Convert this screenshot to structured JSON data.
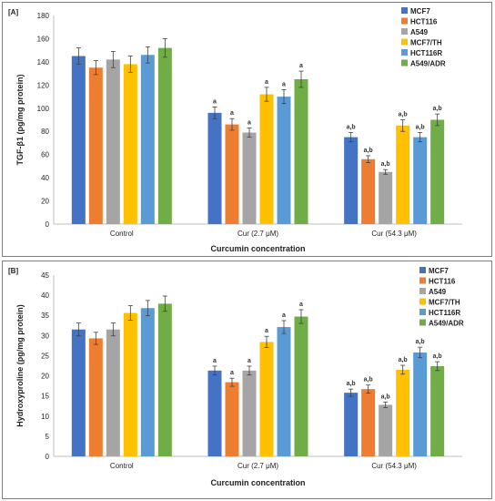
{
  "chart_data": [
    {
      "type": "bar",
      "panel_label": "[A]",
      "ylabel": "TGF-β1  (pg/mg protein)",
      "xlabel": "Curcumin concentration",
      "ylim": [
        0,
        180
      ],
      "yticks": [
        0,
        20,
        40,
        60,
        80,
        100,
        120,
        140,
        160,
        180
      ],
      "categories": [
        "Control",
        "Cur (2.7  μM)",
        "Cur (54.3 μM)"
      ],
      "legend_position": "top-right",
      "grid": false,
      "series": [
        {
          "name": "MCF7",
          "color": "#4472C4",
          "values": [
            145,
            96,
            75
          ],
          "errors": [
            7,
            5,
            4
          ],
          "labels": [
            "",
            "a",
            "a,b"
          ]
        },
        {
          "name": "HCT116",
          "color": "#ED7D31",
          "values": [
            135,
            86,
            56
          ],
          "errors": [
            6,
            5,
            3
          ],
          "labels": [
            "",
            "a",
            "a,b"
          ]
        },
        {
          "name": "A549",
          "color": "#A5A5A5",
          "values": [
            142,
            79,
            45
          ],
          "errors": [
            7,
            4,
            2
          ],
          "labels": [
            "",
            "a",
            "a,b"
          ]
        },
        {
          "name": "MCF7/TH",
          "color": "#FFC000",
          "values": [
            138,
            112,
            85
          ],
          "errors": [
            7,
            6,
            5
          ],
          "labels": [
            "",
            "a",
            "a,b"
          ]
        },
        {
          "name": "HCT116R",
          "color": "#5B9BD5",
          "values": [
            146,
            110,
            75
          ],
          "errors": [
            7,
            6,
            4
          ],
          "labels": [
            "",
            "a",
            "a,b"
          ]
        },
        {
          "name": "A549/ADR",
          "color": "#70AD47",
          "values": [
            152,
            125,
            90
          ],
          "errors": [
            8,
            7,
            5
          ],
          "labels": [
            "",
            "a",
            "a,b"
          ]
        }
      ]
    },
    {
      "type": "bar",
      "panel_label": "[B]",
      "ylabel": "Hydroxyproline (pg/mg protein)",
      "xlabel": "Curcumin concentration",
      "ylim": [
        0,
        45
      ],
      "yticks": [
        0,
        5,
        10,
        15,
        20,
        25,
        30,
        35,
        40,
        45
      ],
      "categories": [
        "Control",
        "Cur (2.7 μM)",
        "Cur (54.3 μM)"
      ],
      "legend_position": "top-right",
      "grid": false,
      "series": [
        {
          "name": "MCF7",
          "color": "#4472C4",
          "values": [
            31.5,
            21.3,
            15.8
          ],
          "errors": [
            1.6,
            1.1,
            0.9
          ],
          "labels": [
            "",
            "a",
            "a,b"
          ]
        },
        {
          "name": "HCT116",
          "color": "#ED7D31",
          "values": [
            29.3,
            18.4,
            16.7
          ],
          "errors": [
            1.5,
            1.0,
            1.0
          ],
          "labels": [
            "",
            "a",
            "a,b"
          ]
        },
        {
          "name": "A549",
          "color": "#A5A5A5",
          "values": [
            31.5,
            21.3,
            12.8
          ],
          "errors": [
            1.6,
            1.1,
            0.7
          ],
          "labels": [
            "",
            "a",
            "a,b"
          ]
        },
        {
          "name": "MCF7/TH",
          "color": "#FFC000",
          "values": [
            35.6,
            28.4,
            21.5
          ],
          "errors": [
            1.8,
            1.4,
            1.1
          ],
          "labels": [
            "",
            "a",
            "a,b"
          ]
        },
        {
          "name": "HCT116R",
          "color": "#5B9BD5",
          "values": [
            36.8,
            32.1,
            25.8
          ],
          "errors": [
            1.9,
            1.6,
            1.3
          ],
          "labels": [
            "",
            "a",
            "a,b"
          ]
        },
        {
          "name": "A549/ADR",
          "color": "#70AD47",
          "values": [
            37.9,
            34.7,
            22.4
          ],
          "errors": [
            1.9,
            1.7,
            1.1
          ],
          "labels": [
            "",
            "a",
            "a,b"
          ]
        }
      ]
    }
  ]
}
